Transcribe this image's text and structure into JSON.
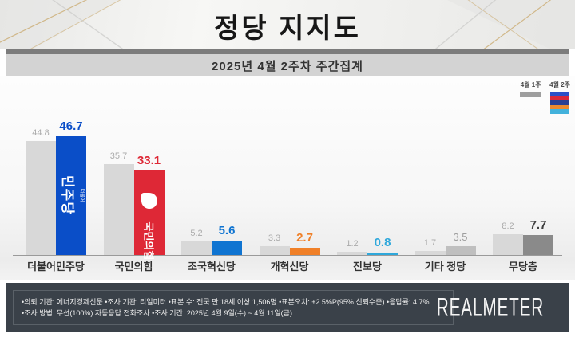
{
  "header": {
    "title": "정당 지지도",
    "subtitle": "2025년 4월 2주차 주간집계"
  },
  "legend": {
    "week1_label": "4월 1주",
    "week2_label": "4월 2주",
    "week1_color": "#9e9e9e",
    "week2_stripes": [
      "#2b50c8",
      "#d8293b",
      "#2a3f94",
      "#ec8a2f",
      "#43b2dc"
    ]
  },
  "chart_data": {
    "type": "bar",
    "title": "정당 지지도",
    "subtitle": "2025년 4월 2주차 주간집계",
    "unit": "%",
    "ylim": [
      0,
      50
    ],
    "categories": [
      "더불어민주당",
      "국민의힘",
      "조국혁신당",
      "개혁신당",
      "진보당",
      "기타 정당",
      "무당층"
    ],
    "series": [
      {
        "name": "4월 1주",
        "values": [
          44.8,
          35.7,
          5.2,
          3.3,
          1.2,
          1.7,
          8.2
        ]
      },
      {
        "name": "4월 2주",
        "values": [
          46.7,
          33.1,
          5.6,
          2.7,
          0.8,
          3.5,
          7.7
        ]
      }
    ],
    "week1_bar_color": "#d8d8d8",
    "week1_value_color": "#ababab",
    "week2_bar_colors": [
      "#0a4ec8",
      "#de2836",
      "#0f74d1",
      "#f08028",
      "#2fa8db",
      "#bfbfbf",
      "#8a8a8a"
    ],
    "week2_value_colors": [
      "#0a4ec8",
      "#de2836",
      "#0f74d1",
      "#f08028",
      "#2fa8db",
      "#9e9e9e",
      "#3f3f3f"
    ],
    "week2_value_bold": [
      true,
      true,
      true,
      true,
      true,
      false,
      true
    ],
    "bar_logos": {
      "0": {
        "type": "minjoo",
        "small": "더불어",
        "big": "민주당"
      },
      "1": {
        "type": "ppp",
        "text": "국민의힘"
      }
    },
    "legend_position": "top-right",
    "grid": false
  },
  "footer": {
    "line1": "•의뢰 기관: 에너지경제신문  •조사 기관: 리얼미터 •표본 수: 전국 만 18세 이상 1,506명 •표본오차: ±2.5%P(95% 신뢰수준) •응답률: 4.7%",
    "line2": "•조사 방법: 무선(100%) 자동응답 전화조사 •조사 기간: 2025년 4월 9일(수) ~ 4월 11일(금)",
    "logo": "REALMETER"
  }
}
